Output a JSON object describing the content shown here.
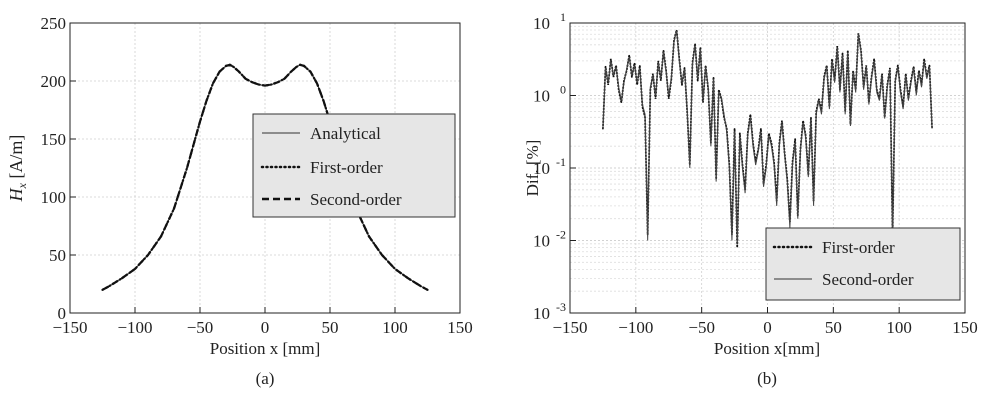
{
  "chart_data": [
    {
      "type": "line",
      "panel_label": "(a)",
      "xlabel": "Position x [mm]",
      "ylabel_main": "H",
      "ylabel_sub": "x",
      "ylabel_unit": " [A/m]",
      "xlim": [
        -150,
        150
      ],
      "ylim": [
        0,
        250
      ],
      "xticks": [
        -150,
        -100,
        -50,
        0,
        50,
        100,
        150
      ],
      "yticks": [
        0,
        50,
        100,
        150,
        200,
        250
      ],
      "xtick_labels": [
        "−150",
        "−100",
        "−50",
        "0",
        "50",
        "100",
        "150"
      ],
      "ytick_labels": [
        "0",
        "50",
        "100",
        "150",
        "200",
        "250"
      ],
      "grid": true,
      "legend_position": "right",
      "x": [
        -125,
        -120,
        -110,
        -100,
        -90,
        -80,
        -70,
        -60,
        -50,
        -45,
        -40,
        -35,
        -30,
        -27,
        -24,
        -20,
        -15,
        -10,
        -5,
        0,
        5,
        10,
        15,
        20,
        24,
        27,
        30,
        35,
        40,
        45,
        50,
        60,
        70,
        80,
        90,
        100,
        110,
        120,
        125
      ],
      "series": [
        {
          "name": "Analytical",
          "style": "solid",
          "values": [
            20,
            23,
            30,
            38,
            50,
            66,
            90,
            125,
            165,
            183,
            198,
            208,
            213,
            214,
            212,
            208,
            202,
            199,
            197,
            196,
            197,
            199,
            202,
            208,
            212,
            214,
            213,
            208,
            198,
            183,
            165,
            125,
            90,
            66,
            50,
            38,
            30,
            23,
            20
          ]
        },
        {
          "name": "First-order",
          "style": "dotted",
          "values": [
            20,
            23,
            30,
            38,
            50,
            66,
            90,
            125,
            165,
            183,
            198,
            208,
            213,
            214,
            212,
            208,
            202,
            199,
            197,
            196,
            197,
            199,
            202,
            208,
            212,
            214,
            213,
            208,
            198,
            183,
            165,
            125,
            90,
            66,
            50,
            38,
            30,
            23,
            20
          ]
        },
        {
          "name": "Second-order",
          "style": "dashed",
          "values": [
            20,
            23,
            30,
            38,
            50,
            66,
            90,
            125,
            165,
            183,
            198,
            208,
            213,
            214,
            212,
            208,
            202,
            199,
            197,
            196,
            197,
            199,
            202,
            208,
            212,
            214,
            213,
            208,
            198,
            183,
            165,
            125,
            90,
            66,
            50,
            38,
            30,
            23,
            20
          ]
        }
      ]
    },
    {
      "type": "line",
      "panel_label": "(b)",
      "xlabel": "Position x[mm]",
      "ylabel": "Dif. [%]",
      "yscale": "log",
      "xlim": [
        -150,
        150
      ],
      "ylim": [
        0.001,
        10
      ],
      "xticks": [
        -150,
        -100,
        -50,
        0,
        50,
        100,
        150
      ],
      "xtick_labels": [
        "−150",
        "−100",
        "−50",
        "0",
        "50",
        "100",
        "150"
      ],
      "yticks": [
        {
          "value": 10,
          "base": "10",
          "exp": "1"
        },
        {
          "value": 1,
          "base": "10",
          "exp": "0"
        },
        {
          "value": 0.1,
          "base": "10",
          "exp": "-1"
        },
        {
          "value": 0.01,
          "base": "10",
          "exp": "-2"
        },
        {
          "value": 0.001,
          "base": "10",
          "exp": "-3"
        }
      ],
      "grid": true,
      "legend_position": "bottom-right",
      "x": [
        -125,
        -123,
        -121,
        -119,
        -117,
        -115,
        -113,
        -111,
        -109,
        -107,
        -105,
        -103,
        -101,
        -99,
        -97,
        -95,
        -93,
        -91,
        -89,
        -87,
        -85,
        -83,
        -81,
        -79,
        -77,
        -75,
        -73,
        -71,
        -69,
        -67,
        -65,
        -63,
        -61,
        -59,
        -57,
        -55,
        -53,
        -51,
        -49,
        -47,
        -45,
        -43,
        -41,
        -39,
        -37,
        -35,
        -33,
        -31,
        -29,
        -27,
        -25,
        -23,
        -21,
        -19,
        -17,
        -15,
        -13,
        -11,
        -9,
        -7,
        -5,
        -3,
        -1,
        1,
        3,
        5,
        7,
        9,
        11,
        13,
        15,
        17,
        19,
        21,
        23,
        25,
        27,
        29,
        31,
        33,
        35,
        37,
        39,
        41,
        43,
        45,
        47,
        49,
        51,
        53,
        55,
        57,
        59,
        61,
        63,
        65,
        67,
        69,
        71,
        73,
        75,
        77,
        79,
        81,
        83,
        85,
        87,
        89,
        91,
        93,
        95,
        97,
        99,
        101,
        103,
        105,
        107,
        109,
        111,
        113,
        115,
        117,
        119,
        121,
        123,
        125
      ],
      "series": [
        {
          "name": "First-order",
          "style": "dotted",
          "values": [
            0.35,
            2.5,
            1.4,
            3.2,
            1.8,
            2.6,
            1.2,
            0.8,
            1.6,
            2.2,
            3.6,
            1.8,
            2.8,
            1.4,
            2.6,
            0.7,
            0.5,
            0.012,
            1.2,
            2.0,
            0.9,
            3.0,
            1.6,
            4.2,
            2.2,
            0.9,
            1.7,
            5.8,
            8.0,
            3.2,
            1.4,
            2.4,
            0.6,
            0.11,
            2.8,
            5.2,
            1.6,
            4.6,
            0.8,
            2.6,
            1.2,
            0.22,
            1.8,
            0.07,
            1.2,
            0.9,
            0.5,
            0.35,
            0.11,
            0.012,
            0.35,
            0.008,
            0.3,
            0.11,
            0.05,
            0.3,
            0.55,
            0.22,
            0.12,
            0.18,
            0.35,
            0.06,
            0.11,
            0.3,
            0.22,
            0.12,
            0.035,
            0.22,
            0.45,
            0.16,
            0.07,
            0.018,
            0.12,
            0.25,
            0.022,
            0.18,
            0.45,
            0.28,
            0.08,
            0.5,
            0.035,
            0.6,
            0.9,
            0.6,
            1.8,
            2.6,
            0.7,
            3.2,
            1.6,
            4.8,
            1.2,
            3.8,
            0.6,
            4.2,
            0.4,
            2.2,
            1.2,
            7.2,
            4.2,
            1.3,
            2.6,
            0.8,
            1.8,
            3.2,
            1.2,
            0.9,
            2.0,
            0.5,
            1.4,
            2.4,
            0.012,
            1.6,
            2.6,
            1.2,
            0.7,
            2.0,
            0.9,
            1.6,
            2.5,
            1.1,
            2.2,
            1.4,
            3.2,
            1.8,
            2.6,
            0.35
          ]
        },
        {
          "name": "Second-order",
          "style": "solid",
          "values": [
            0.35,
            2.4,
            1.5,
            3.0,
            1.9,
            2.5,
            1.3,
            0.85,
            1.5,
            2.3,
            3.4,
            1.9,
            2.6,
            1.5,
            2.4,
            0.75,
            0.55,
            0.01,
            1.3,
            1.9,
            1.0,
            2.8,
            1.7,
            4.0,
            2.1,
            1.0,
            1.8,
            5.5,
            7.8,
            3.0,
            1.5,
            2.3,
            0.65,
            0.1,
            2.6,
            5.0,
            1.7,
            4.4,
            0.85,
            2.5,
            1.3,
            0.2,
            1.7,
            0.065,
            1.1,
            0.95,
            0.55,
            0.32,
            0.1,
            0.01,
            0.32,
            0.009,
            0.28,
            0.1,
            0.045,
            0.28,
            0.5,
            0.2,
            0.11,
            0.17,
            0.32,
            0.055,
            0.1,
            0.28,
            0.2,
            0.11,
            0.03,
            0.2,
            0.42,
            0.15,
            0.065,
            0.015,
            0.11,
            0.23,
            0.02,
            0.17,
            0.42,
            0.26,
            0.075,
            0.48,
            0.03,
            0.55,
            0.85,
            0.55,
            1.7,
            2.5,
            0.65,
            3.0,
            1.5,
            4.6,
            1.1,
            3.6,
            0.55,
            4.0,
            0.38,
            2.1,
            1.1,
            7.0,
            4.0,
            1.2,
            2.5,
            0.75,
            1.7,
            3.0,
            1.1,
            0.85,
            1.9,
            0.48,
            1.3,
            2.3,
            0.01,
            1.5,
            2.5,
            1.1,
            0.65,
            1.9,
            0.85,
            1.5,
            2.4,
            1.0,
            2.1,
            1.3,
            3.0,
            1.7,
            2.5,
            0.35
          ]
        }
      ]
    }
  ]
}
